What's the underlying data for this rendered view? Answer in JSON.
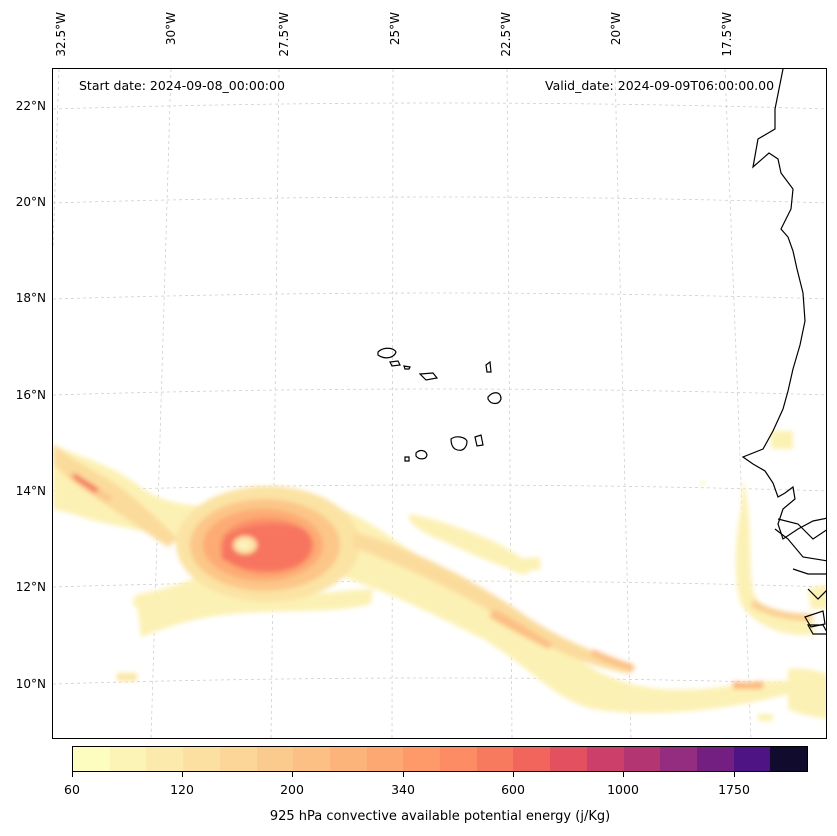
{
  "map": {
    "start_date": "Start date: 2024-09-08_00:00:00",
    "valid_date": "Valid_date: 2024-09-09T06:00:00.00",
    "lon_labels": [
      "32.5°W",
      "30°W",
      "27.5°W",
      "25°W",
      "22.5°W",
      "20°W",
      "17.5°W"
    ],
    "lat_labels": [
      "22°N",
      "20°N",
      "18°N",
      "16°N",
      "14°N",
      "12°N",
      "10°N"
    ],
    "field": "925 hPa convective available potential energy",
    "region": "Eastern tropical Atlantic, Cape Verde islands and West African coast"
  },
  "colorbar": {
    "label": "925 hPa convective available potential energy (j/Kg)",
    "tick_labels": [
      "60",
      "120",
      "200",
      "340",
      "600",
      "1000",
      "1750"
    ],
    "colors": [
      "#fcfdbf",
      "#fcf4b6",
      "#fbeaac",
      "#fbe0a2",
      "#fbd698",
      "#fbcb8e",
      "#fcc084",
      "#fcb47b",
      "#fda872",
      "#fe9a6a",
      "#fd8b63",
      "#f87a5e",
      "#f1655d",
      "#e35160",
      "#cc3f6a",
      "#b33572",
      "#942c80",
      "#721f81",
      "#4e1483",
      "#110b2d"
    ]
  }
}
